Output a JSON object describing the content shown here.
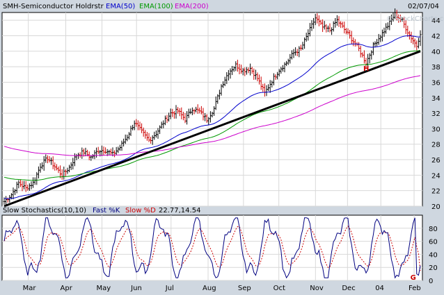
{
  "header": {
    "symbol": "SMH-Semiconductor Holdrstr",
    "ema50": "EMA(50)",
    "ema100": "EMA(100)",
    "ema200": "EMA(200)",
    "date": "02/07/04",
    "watermark": "© StockCharts.com"
  },
  "stoch_header": {
    "title": "Slow Stochastics(10,10)",
    "k": "Fast %K",
    "d": "Slow %D",
    "values": "22.77,14.54"
  },
  "annotations": {
    "H": "H",
    "G": "G"
  },
  "colors": {
    "background": "#cfd7e0",
    "panel": "#ffffff",
    "up": "#000000",
    "down": "#cc0000",
    "ema50": "#0000cc",
    "ema100": "#009900",
    "ema200": "#cc00cc",
    "trend": "#000000",
    "stochK": "#000080",
    "stochD": "#cc0000"
  },
  "chart_data": [
    {
      "type": "line",
      "title": "SMH-Semiconductor Holdrstr",
      "x_ticks": [
        "Mar",
        "Apr",
        "May",
        "Jun",
        "Jul",
        "Aug",
        "Sep",
        "Oct",
        "Nov",
        "Dec",
        "04",
        "Feb"
      ],
      "ylim": [
        20,
        45
      ],
      "y_ticks": [
        20,
        22,
        24,
        26,
        28,
        30,
        32,
        34,
        36,
        38,
        40,
        42,
        44
      ],
      "grid": true,
      "price_anchors": [
        [
          0,
          20.6
        ],
        [
          4,
          21.5
        ],
        [
          8,
          23.0
        ],
        [
          12,
          22.3
        ],
        [
          16,
          23.0
        ],
        [
          20,
          25.2
        ],
        [
          24,
          26.2
        ],
        [
          28,
          25.1
        ],
        [
          32,
          24.0
        ],
        [
          36,
          25.0
        ],
        [
          40,
          26.6
        ],
        [
          44,
          27.0
        ],
        [
          48,
          26.3
        ],
        [
          52,
          27.2
        ],
        [
          56,
          27.2
        ],
        [
          60,
          26.7
        ],
        [
          64,
          27.6
        ],
        [
          68,
          29.0
        ],
        [
          72,
          30.8
        ],
        [
          76,
          29.6
        ],
        [
          80,
          28.5
        ],
        [
          84,
          29.4
        ],
        [
          88,
          30.8
        ],
        [
          92,
          32.0
        ],
        [
          96,
          32.3
        ],
        [
          100,
          31.2
        ],
        [
          104,
          32.6
        ],
        [
          108,
          32.2
        ],
        [
          112,
          31.2
        ],
        [
          116,
          32.6
        ],
        [
          120,
          35.5
        ],
        [
          124,
          37.3
        ],
        [
          128,
          38.2
        ],
        [
          132,
          37.5
        ],
        [
          136,
          37.8
        ],
        [
          140,
          36.5
        ],
        [
          144,
          34.6
        ],
        [
          148,
          36.2
        ],
        [
          152,
          37.6
        ],
        [
          156,
          38.5
        ],
        [
          160,
          39.8
        ],
        [
          164,
          40.3
        ],
        [
          168,
          42.3
        ],
        [
          172,
          44.3
        ],
        [
          176,
          43.1
        ],
        [
          180,
          42.7
        ],
        [
          184,
          44.0
        ],
        [
          188,
          42.8
        ],
        [
          192,
          41.6
        ],
        [
          196,
          40.3
        ],
        [
          200,
          38.5
        ],
        [
          204,
          40.7
        ],
        [
          208,
          42.0
        ],
        [
          212,
          43.3
        ],
        [
          216,
          44.8
        ],
        [
          220,
          43.9
        ],
        [
          224,
          42.1
        ],
        [
          228,
          40.7
        ],
        [
          230,
          42.4
        ]
      ],
      "series": [
        {
          "name": "SMH-Semiconductor Holdrstr",
          "style": "ohlc"
        },
        {
          "name": "EMA(50)",
          "start": 21.0
        },
        {
          "name": "EMA(100)",
          "start": 23.8
        },
        {
          "name": "EMA(200)",
          "start": 27.8
        }
      ],
      "trendline": {
        "from": [
          0,
          20.0
        ],
        "to": [
          230,
          40.0
        ]
      },
      "annotations": [
        {
          "text": "H",
          "x": 200,
          "y": 38.0
        }
      ]
    },
    {
      "type": "line",
      "title": "Slow Stochastics(10,10)",
      "ylim": [
        0,
        100
      ],
      "y_ticks": [
        0,
        20,
        40,
        60,
        80
      ],
      "grid": true,
      "series": [
        {
          "name": "Fast %K",
          "last": 22.77
        },
        {
          "name": "Slow %D",
          "last": 14.54
        }
      ],
      "annotations": [
        {
          "text": "G",
          "x": 226,
          "y": 2
        }
      ]
    }
  ]
}
